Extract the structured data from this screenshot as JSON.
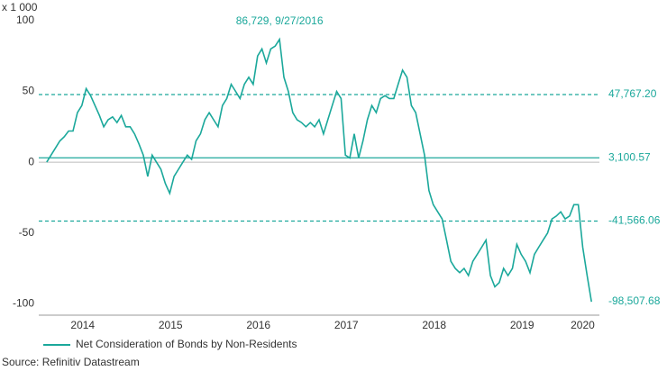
{
  "chart_data": {
    "type": "line",
    "y_unit_label": "x 1 000",
    "source": "Source: Refinitiv Datastream",
    "xlim": [
      2014,
      2020.38
    ],
    "ylim": [
      -108,
      105
    ],
    "xticks": [
      {
        "value": 2014.5,
        "label": "2014"
      },
      {
        "value": 2015.5,
        "label": "2015"
      },
      {
        "value": 2016.5,
        "label": "2016"
      },
      {
        "value": 2017.5,
        "label": "2017"
      },
      {
        "value": 2018.5,
        "label": "2018"
      },
      {
        "value": 2019.5,
        "label": "2019"
      },
      {
        "value": 2020.19,
        "label": "2020"
      }
    ],
    "yticks": [
      100,
      50,
      0,
      -50,
      -100
    ],
    "zero_line": true,
    "legend": "bottom-left",
    "reference_lines": [
      {
        "value": 47.7672,
        "label": "47,767.20",
        "style": "dashed"
      },
      {
        "value": 3.10057,
        "label": "3,100.57",
        "style": "solid"
      },
      {
        "value": -41.56606,
        "label": "-41,566.06",
        "style": "dashed"
      }
    ],
    "end_label": {
      "value": -98.50768,
      "label": "-98,507.68"
    },
    "annotation": {
      "label": "86,729, 9/27/2016",
      "x": 2016.74,
      "value": 86.729
    },
    "x": [
      2014.09,
      2014.14,
      2014.19,
      2014.24,
      2014.29,
      2014.34,
      2014.39,
      2014.44,
      2014.49,
      2014.54,
      2014.59,
      2014.64,
      2014.69,
      2014.74,
      2014.79,
      2014.84,
      2014.89,
      2014.94,
      2014.99,
      2015.04,
      2015.09,
      2015.14,
      2015.19,
      2015.24,
      2015.29,
      2015.34,
      2015.39,
      2015.44,
      2015.49,
      2015.54,
      2015.59,
      2015.64,
      2015.69,
      2015.74,
      2015.79,
      2015.84,
      2015.89,
      2015.94,
      2015.99,
      2016.04,
      2016.09,
      2016.14,
      2016.19,
      2016.24,
      2016.29,
      2016.34,
      2016.39,
      2016.44,
      2016.49,
      2016.54,
      2016.59,
      2016.64,
      2016.69,
      2016.74,
      2016.79,
      2016.84,
      2016.89,
      2016.94,
      2016.99,
      2017.04,
      2017.09,
      2017.14,
      2017.19,
      2017.24,
      2017.29,
      2017.34,
      2017.39,
      2017.44,
      2017.49,
      2017.54,
      2017.59,
      2017.64,
      2017.69,
      2017.74,
      2017.79,
      2017.84,
      2017.89,
      2017.94,
      2017.99,
      2018.04,
      2018.09,
      2018.14,
      2018.19,
      2018.24,
      2018.29,
      2018.34,
      2018.39,
      2018.44,
      2018.49,
      2018.54,
      2018.59,
      2018.64,
      2018.69,
      2018.74,
      2018.79,
      2018.84,
      2018.89,
      2018.94,
      2018.99,
      2019.04,
      2019.09,
      2019.14,
      2019.19,
      2019.24,
      2019.29,
      2019.34,
      2019.39,
      2019.44,
      2019.49,
      2019.54,
      2019.59,
      2019.64,
      2019.69,
      2019.74,
      2019.79,
      2019.84,
      2019.89,
      2019.94,
      2019.99,
      2020.04,
      2020.09,
      2020.14,
      2020.19,
      2020.24,
      2020.29
    ],
    "series": [
      {
        "name": "Net Consideration of Bonds by Non-Residents",
        "color": "#1ba89b",
        "values": [
          0,
          5,
          10,
          15,
          18,
          22,
          22,
          35,
          40,
          52,
          47,
          40,
          33,
          25,
          30,
          32,
          28,
          33,
          25,
          25,
          20,
          13,
          5,
          -10,
          5,
          0,
          -5,
          -15,
          -22,
          -10,
          -5,
          0,
          5,
          2,
          15,
          20,
          30,
          35,
          30,
          25,
          40,
          45,
          55,
          50,
          45,
          55,
          60,
          55,
          75,
          80,
          70,
          80,
          82,
          86.729,
          60,
          50,
          35,
          30,
          28,
          25,
          28,
          25,
          30,
          20,
          30,
          40,
          50,
          45,
          5,
          3,
          20,
          3,
          15,
          30,
          40,
          35,
          45,
          47,
          45,
          45,
          55,
          65,
          60,
          40,
          35,
          20,
          5,
          -20,
          -30,
          -35,
          -40,
          -55,
          -70,
          -75,
          -78,
          -75,
          -80,
          -70,
          -65,
          -60,
          -55,
          -80,
          -88,
          -85,
          -75,
          -80,
          -75,
          -58,
          -65,
          -70,
          -78,
          -65,
          -60,
          -55,
          -50,
          -40,
          -38,
          -35,
          -40,
          -38,
          -30,
          -30,
          -60,
          -80,
          -98.50768
        ]
      }
    ]
  }
}
